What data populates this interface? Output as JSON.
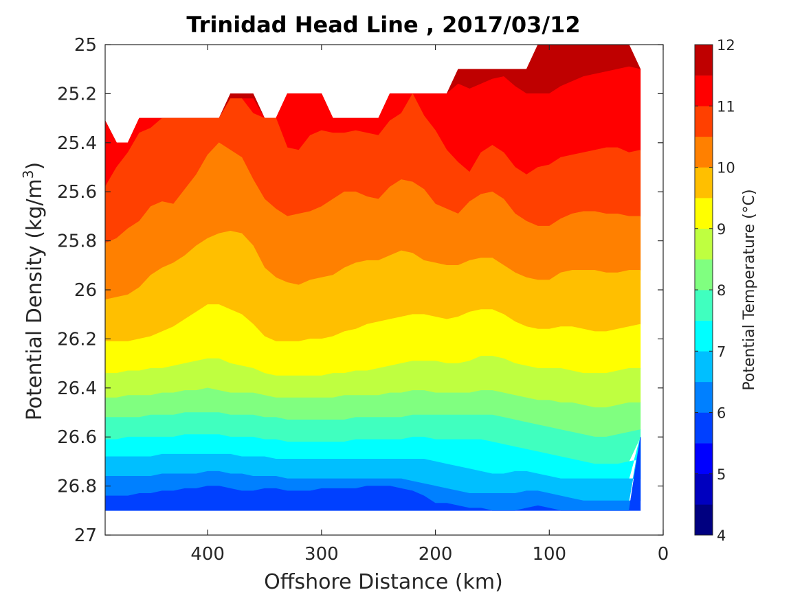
{
  "chart_data": {
    "type": "contourf",
    "title": "Trinidad Head Line , 2017/03/12",
    "xlabel": "Offshore Distance (km)",
    "ylabel": {
      "main": "Potential Density (kg/m",
      "sup": "3",
      "close": ")"
    },
    "xlim": [
      490,
      0
    ],
    "ylim": [
      25,
      27
    ],
    "x_reversed": true,
    "y_reversed": true,
    "x_ticks": [
      400,
      300,
      200,
      100,
      0
    ],
    "x_tick_labels": [
      "400",
      "300",
      "200",
      "100",
      "0"
    ],
    "y_ticks": [
      25,
      25.2,
      25.4,
      25.6,
      25.8,
      26,
      26.2,
      26.4,
      26.6,
      26.8,
      27
    ],
    "y_tick_labels": [
      "25",
      "25.2",
      "25.4",
      "25.6",
      "25.8",
      "26",
      "26.2",
      "26.4",
      "26.6",
      "26.8",
      "27"
    ],
    "colorbar": {
      "label": "Potential Temperature (°C)",
      "min": 4,
      "max": 12,
      "step": 0.5,
      "tick_values": [
        4,
        5,
        6,
        7,
        8,
        9,
        10,
        11,
        12
      ],
      "tick_labels": [
        "4",
        "5",
        "6",
        "7",
        "8",
        "9",
        "10",
        "11",
        "12"
      ],
      "colors": [
        "#000080",
        "#0000bf",
        "#0000ff",
        "#0040ff",
        "#0080ff",
        "#00bfff",
        "#00ffff",
        "#40ffbf",
        "#80ff80",
        "#bfff40",
        "#ffff00",
        "#ffbf00",
        "#ff8000",
        "#ff4000",
        "#ff0000",
        "#bf0000"
      ]
    },
    "sections": {
      "x": [
        490,
        480,
        470,
        460,
        450,
        440,
        430,
        420,
        410,
        400,
        390,
        380,
        370,
        360,
        350,
        340,
        330,
        320,
        310,
        300,
        290,
        280,
        270,
        260,
        250,
        240,
        230,
        220,
        210,
        200,
        190,
        180,
        170,
        160,
        150,
        140,
        130,
        120,
        110,
        100,
        90,
        80,
        70,
        60,
        50,
        40,
        30,
        20
      ],
      "top_density": [
        25.31,
        25.4,
        25.4,
        25.3,
        25.3,
        25.3,
        25.3,
        25.3,
        25.3,
        25.3,
        25.3,
        25.2,
        25.2,
        25.2,
        25.3,
        25.3,
        25.2,
        25.2,
        25.2,
        25.2,
        25.3,
        25.3,
        25.3,
        25.3,
        25.3,
        25.2,
        25.2,
        25.2,
        25.2,
        25.2,
        25.2,
        25.1,
        25.1,
        25.1,
        25.1,
        25.1,
        25.1,
        25.1,
        25.0,
        25.0,
        25.0,
        25.0,
        25.0,
        25.0,
        25.0,
        25.0,
        25.0,
        25.1
      ],
      "bottom_density": [
        26.9,
        26.9,
        26.9,
        26.9,
        26.9,
        26.9,
        26.9,
        26.9,
        26.9,
        26.9,
        26.9,
        26.9,
        26.9,
        26.9,
        26.9,
        26.9,
        26.9,
        26.9,
        26.9,
        26.9,
        26.9,
        26.9,
        26.9,
        26.9,
        26.9,
        26.9,
        26.9,
        26.9,
        26.9,
        26.9,
        26.9,
        26.9,
        26.9,
        26.9,
        26.9,
        26.9,
        26.9,
        26.9,
        26.9,
        26.9,
        26.9,
        26.9,
        26.9,
        26.9,
        26.9,
        26.9,
        26.9,
        26.6
      ]
    },
    "isopycnal_boundaries": [
      {
        "between": [
          11,
          11.5
        ],
        "density": [
          25.28,
          25.3,
          25.3,
          25.3,
          25.3,
          25.28,
          25.28,
          25.27,
          25.27,
          25.25,
          25.23,
          25.22,
          25.22,
          25.22,
          25.22,
          25.22,
          25.2,
          25.2,
          25.2,
          25.2,
          25.2,
          25.2,
          25.2,
          25.2,
          25.2,
          25.2,
          25.2,
          25.2,
          25.2,
          25.2,
          25.2,
          25.16,
          25.18,
          25.16,
          25.14,
          25.13,
          25.17,
          25.2,
          25.2,
          25.2,
          25.17,
          25.15,
          25.13,
          25.12,
          25.11,
          25.1,
          25.09,
          25.09
        ]
      },
      {
        "between": [
          10.5,
          11
        ],
        "density": [
          25.58,
          25.5,
          25.44,
          25.36,
          25.34,
          25.3,
          25.3,
          25.3,
          25.3,
          25.3,
          25.3,
          25.22,
          25.22,
          25.28,
          25.3,
          25.3,
          25.42,
          25.43,
          25.37,
          25.35,
          25.36,
          25.36,
          25.35,
          25.36,
          25.37,
          25.31,
          25.28,
          25.2,
          25.29,
          25.35,
          25.43,
          25.48,
          25.52,
          25.44,
          25.41,
          25.44,
          25.5,
          25.53,
          25.5,
          25.49,
          25.46,
          25.45,
          25.44,
          25.43,
          25.42,
          25.42,
          25.44,
          25.43
        ]
      },
      {
        "between": [
          10,
          10.5
        ],
        "density": [
          25.81,
          25.79,
          25.75,
          25.72,
          25.66,
          25.64,
          25.65,
          25.59,
          25.53,
          25.45,
          25.4,
          25.43,
          25.46,
          25.55,
          25.63,
          25.67,
          25.7,
          25.69,
          25.68,
          25.66,
          25.63,
          25.6,
          25.6,
          25.62,
          25.63,
          25.58,
          25.55,
          25.56,
          25.59,
          25.65,
          25.67,
          25.69,
          25.64,
          25.61,
          25.6,
          25.63,
          25.69,
          25.72,
          25.74,
          25.74,
          25.71,
          25.69,
          25.68,
          25.68,
          25.69,
          25.69,
          25.7,
          25.7
        ]
      },
      {
        "between": [
          9.5,
          10
        ],
        "density": [
          26.04,
          26.03,
          26.02,
          25.99,
          25.94,
          25.91,
          25.89,
          25.86,
          25.82,
          25.79,
          25.77,
          25.76,
          25.77,
          25.82,
          25.91,
          25.95,
          25.97,
          25.98,
          25.96,
          25.95,
          25.94,
          25.91,
          25.89,
          25.88,
          25.88,
          25.86,
          25.84,
          25.85,
          25.88,
          25.89,
          25.9,
          25.9,
          25.88,
          25.87,
          25.87,
          25.9,
          25.93,
          25.95,
          25.96,
          25.96,
          25.93,
          25.92,
          25.92,
          25.92,
          25.93,
          25.93,
          25.92,
          25.92
        ]
      },
      {
        "between": [
          9,
          9.5
        ],
        "density": [
          26.21,
          26.21,
          26.21,
          26.2,
          26.19,
          26.17,
          26.15,
          26.12,
          26.09,
          26.06,
          26.06,
          26.08,
          26.1,
          26.14,
          26.19,
          26.21,
          26.21,
          26.21,
          26.2,
          26.2,
          26.19,
          26.17,
          26.16,
          26.14,
          26.13,
          26.12,
          26.11,
          26.1,
          26.1,
          26.11,
          26.12,
          26.11,
          26.09,
          26.08,
          26.08,
          26.1,
          26.13,
          26.15,
          26.16,
          26.16,
          26.15,
          26.15,
          26.16,
          26.17,
          26.17,
          26.16,
          26.15,
          26.14
        ]
      },
      {
        "between": [
          8.5,
          9
        ],
        "density": [
          26.34,
          26.34,
          26.33,
          26.33,
          26.32,
          26.32,
          26.31,
          26.3,
          26.29,
          26.28,
          26.28,
          26.3,
          26.31,
          26.32,
          26.34,
          26.35,
          26.35,
          26.35,
          26.35,
          26.35,
          26.34,
          26.34,
          26.33,
          26.33,
          26.32,
          26.31,
          26.3,
          26.29,
          26.29,
          26.29,
          26.3,
          26.3,
          26.29,
          26.27,
          26.27,
          26.28,
          26.3,
          26.31,
          26.32,
          26.32,
          26.32,
          26.33,
          26.34,
          26.34,
          26.34,
          26.33,
          26.32,
          26.32
        ]
      },
      {
        "between": [
          8,
          8.5
        ],
        "density": [
          26.44,
          26.44,
          26.43,
          26.43,
          26.43,
          26.42,
          26.42,
          26.41,
          26.41,
          26.4,
          26.41,
          26.42,
          26.42,
          26.42,
          26.43,
          26.44,
          26.44,
          26.44,
          26.44,
          26.44,
          26.44,
          26.43,
          26.43,
          26.43,
          26.43,
          26.42,
          26.42,
          26.41,
          26.41,
          26.42,
          26.42,
          26.42,
          26.42,
          26.41,
          26.41,
          26.42,
          26.43,
          26.44,
          26.45,
          26.45,
          26.46,
          26.46,
          26.47,
          26.48,
          26.48,
          26.47,
          26.46,
          26.46
        ]
      },
      {
        "between": [
          7.5,
          8
        ],
        "density": [
          26.52,
          26.52,
          26.52,
          26.52,
          26.51,
          26.51,
          26.51,
          26.5,
          26.5,
          26.5,
          26.5,
          26.51,
          26.51,
          26.51,
          26.52,
          26.52,
          26.53,
          26.53,
          26.53,
          26.53,
          26.53,
          26.53,
          26.52,
          26.52,
          26.52,
          26.52,
          26.52,
          26.51,
          26.51,
          26.51,
          26.51,
          26.51,
          26.51,
          26.51,
          26.51,
          26.52,
          26.53,
          26.54,
          26.55,
          26.56,
          26.57,
          26.58,
          26.59,
          26.6,
          26.6,
          26.59,
          26.58,
          26.57
        ]
      },
      {
        "between": [
          7,
          7.5
        ],
        "density": [
          26.61,
          26.61,
          26.6,
          26.6,
          26.6,
          26.6,
          26.6,
          26.59,
          26.59,
          26.59,
          26.59,
          26.6,
          26.6,
          26.6,
          26.61,
          26.61,
          26.62,
          26.62,
          26.62,
          26.62,
          26.62,
          26.62,
          26.61,
          26.61,
          26.61,
          26.61,
          26.61,
          26.6,
          26.6,
          26.61,
          26.61,
          26.61,
          26.61,
          26.61,
          26.62,
          26.63,
          26.64,
          26.65,
          26.66,
          26.67,
          26.68,
          26.69,
          26.7,
          26.71,
          26.71,
          26.71,
          26.7,
          26.69
        ]
      },
      {
        "between": [
          6.5,
          7
        ],
        "density": [
          26.68,
          26.68,
          26.68,
          26.68,
          26.68,
          26.67,
          26.67,
          26.67,
          26.67,
          26.67,
          26.67,
          26.67,
          26.68,
          26.68,
          26.68,
          26.69,
          26.69,
          26.69,
          26.69,
          26.69,
          26.69,
          26.69,
          26.69,
          26.69,
          26.69,
          26.69,
          26.69,
          26.69,
          26.69,
          26.7,
          26.71,
          26.72,
          26.73,
          26.74,
          26.75,
          26.75,
          26.74,
          26.74,
          26.75,
          26.76,
          26.77,
          26.77,
          26.77,
          26.77,
          26.77,
          26.77,
          26.77,
          26.77
        ]
      },
      {
        "between": [
          6,
          6.5
        ],
        "density": [
          26.76,
          26.76,
          26.76,
          26.76,
          26.76,
          26.75,
          26.75,
          26.75,
          26.75,
          26.74,
          26.74,
          26.75,
          26.75,
          26.76,
          26.76,
          26.76,
          26.77,
          26.77,
          26.77,
          26.77,
          26.77,
          26.77,
          26.77,
          26.77,
          26.77,
          26.77,
          26.77,
          26.78,
          26.79,
          26.8,
          26.81,
          26.82,
          26.83,
          26.83,
          26.83,
          26.83,
          26.83,
          26.82,
          26.82,
          26.83,
          26.84,
          26.85,
          26.86,
          26.86,
          26.86,
          26.86,
          26.86,
          26.86
        ]
      },
      {
        "between": [
          5.5,
          6
        ],
        "density": [
          26.84,
          26.84,
          26.84,
          26.83,
          26.83,
          26.82,
          26.82,
          26.81,
          26.81,
          26.8,
          26.8,
          26.81,
          26.82,
          26.82,
          26.81,
          26.81,
          26.82,
          26.82,
          26.82,
          26.81,
          26.81,
          26.81,
          26.81,
          26.8,
          26.8,
          26.8,
          26.81,
          26.82,
          26.84,
          26.87,
          26.87,
          26.88,
          26.89,
          26.89,
          26.9,
          26.9,
          26.9,
          26.89,
          26.88,
          26.89,
          26.9,
          26.9,
          26.9,
          26.9,
          26.9,
          26.9,
          26.9,
          26.9
        ]
      }
    ]
  }
}
